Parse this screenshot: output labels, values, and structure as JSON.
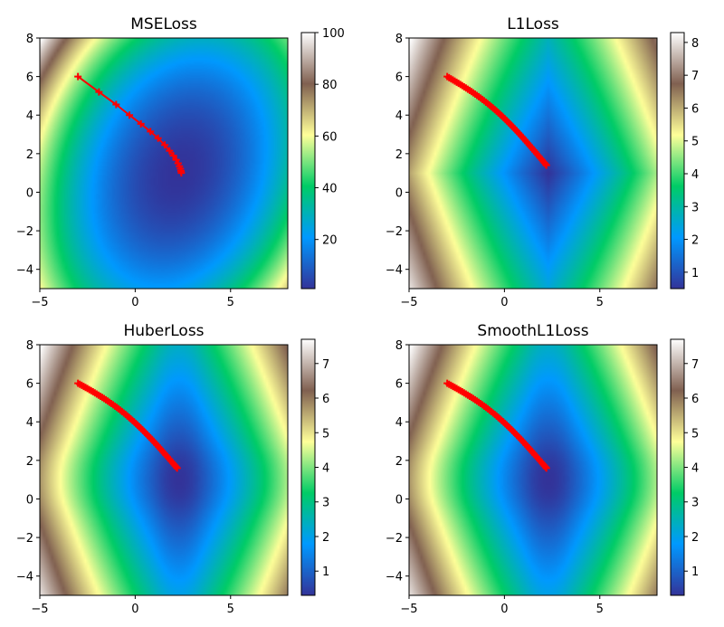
{
  "colormap": [
    "#333399",
    "#0099ff",
    "#00cc66",
    "#ffff99",
    "#806050",
    "#ffffff"
  ],
  "trajectory_color": "#ff0000",
  "chart_data": [
    {
      "type": "heatmap",
      "title": "MSELoss",
      "xlim": [
        -5,
        8
      ],
      "ylim": [
        -5,
        8
      ],
      "xticks": [
        -5,
        0,
        5
      ],
      "xtick_labels": [
        "−5",
        "0",
        "5"
      ],
      "yticks": [
        -4,
        -2,
        0,
        2,
        4,
        6,
        8
      ],
      "ytick_labels": [
        "−4",
        "−2",
        "0",
        "2",
        "4",
        "6",
        "8"
      ],
      "colorbar": {
        "min": 1,
        "max": 100,
        "ticks": [
          20,
          40,
          60,
          80,
          100
        ],
        "tick_labels": [
          "20",
          "40",
          "60",
          "80",
          "100"
        ]
      },
      "surface": {
        "center": [
          2.3,
          1.0
        ],
        "kind": "quadratic"
      },
      "trajectory": {
        "x": [
          -3.0,
          -1.9,
          -1.0,
          -0.3,
          0.3,
          0.8,
          1.2,
          1.55,
          1.8,
          2.0,
          2.15,
          2.25,
          2.32,
          2.37,
          2.4,
          2.42
        ],
        "y": [
          6.0,
          5.2,
          4.55,
          4.0,
          3.55,
          3.15,
          2.8,
          2.45,
          2.15,
          1.9,
          1.68,
          1.5,
          1.35,
          1.22,
          1.1,
          1.0
        ]
      }
    },
    {
      "type": "heatmap",
      "title": "L1Loss",
      "xlim": [
        -5,
        8
      ],
      "ylim": [
        -5,
        8
      ],
      "xticks": [
        -5,
        0,
        5
      ],
      "xtick_labels": [
        "−5",
        "0",
        "5"
      ],
      "yticks": [
        -4,
        -2,
        0,
        2,
        4,
        6,
        8
      ],
      "ytick_labels": [
        "−4",
        "−2",
        "0",
        "2",
        "4",
        "6",
        "8"
      ],
      "colorbar": {
        "min": 0.5,
        "max": 8.3,
        "ticks": [
          1,
          2,
          3,
          4,
          5,
          6,
          7,
          8
        ],
        "tick_labels": [
          "1",
          "2",
          "3",
          "4",
          "5",
          "6",
          "7",
          "8"
        ]
      },
      "surface": {
        "center": [
          2.3,
          1.0
        ],
        "kind": "abs"
      },
      "trajectory": {
        "x_start": -3.0,
        "y_start": 6.0,
        "x_end": 2.2,
        "y_end": 1.4,
        "steps": 60
      }
    },
    {
      "type": "heatmap",
      "title": "HuberLoss",
      "xlim": [
        -5,
        8
      ],
      "ylim": [
        -5,
        8
      ],
      "xticks": [
        -5,
        0,
        5
      ],
      "xtick_labels": [
        "−5",
        "0",
        "5"
      ],
      "yticks": [
        -4,
        -2,
        0,
        2,
        4,
        6,
        8
      ],
      "ytick_labels": [
        "−4",
        "−2",
        "0",
        "2",
        "4",
        "6",
        "8"
      ],
      "colorbar": {
        "min": 0.3,
        "max": 7.7,
        "ticks": [
          1,
          2,
          3,
          4,
          5,
          6,
          7
        ],
        "tick_labels": [
          "1",
          "2",
          "3",
          "4",
          "5",
          "6",
          "7"
        ]
      },
      "surface": {
        "center": [
          2.3,
          1.0
        ],
        "kind": "huber"
      },
      "trajectory": {
        "x_start": -3.0,
        "y_start": 6.0,
        "x_end": 2.2,
        "y_end": 1.6,
        "steps": 60
      }
    },
    {
      "type": "heatmap",
      "title": "SmoothL1Loss",
      "xlim": [
        -5,
        8
      ],
      "ylim": [
        -5,
        8
      ],
      "xticks": [
        -5,
        0,
        5
      ],
      "xtick_labels": [
        "−5",
        "0",
        "5"
      ],
      "yticks": [
        -4,
        -2,
        0,
        2,
        4,
        6,
        8
      ],
      "ytick_labels": [
        "−4",
        "−2",
        "0",
        "2",
        "4",
        "6",
        "8"
      ],
      "colorbar": {
        "min": 0.3,
        "max": 7.7,
        "ticks": [
          1,
          2,
          3,
          4,
          5,
          6,
          7
        ],
        "tick_labels": [
          "1",
          "2",
          "3",
          "4",
          "5",
          "6",
          "7"
        ]
      },
      "surface": {
        "center": [
          2.3,
          1.0
        ],
        "kind": "huber"
      },
      "trajectory": {
        "x_start": -3.0,
        "y_start": 6.0,
        "x_end": 2.2,
        "y_end": 1.6,
        "steps": 60
      }
    }
  ]
}
